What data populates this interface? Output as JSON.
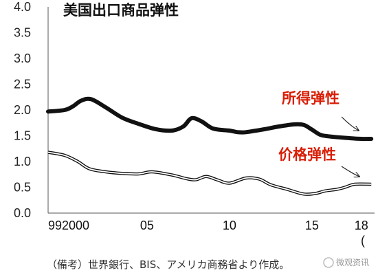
{
  "chart_data": {
    "type": "line",
    "title": "美国出口商品弹性",
    "ylim": [
      0,
      4.0
    ],
    "xlim": [
      1999,
      2018.8
    ],
    "yticks": [
      "4.0",
      "3.5",
      "3.0",
      "2.5",
      "2.0",
      "1.5",
      "1.0",
      "0.5",
      "0.0"
    ],
    "xticks": [
      {
        "x": 1999,
        "label": "99"
      },
      {
        "x": 2000,
        "label": "2000"
      },
      {
        "x": 2005,
        "label": "05"
      },
      {
        "x": 2010,
        "label": "10"
      },
      {
        "x": 2015,
        "label": "15"
      },
      {
        "x": 2018,
        "label": "18"
      }
    ],
    "grid": false,
    "series": [
      {
        "name": "所得弹性",
        "style": "thick-black",
        "color": "#111111",
        "x": [
          1999.0,
          2000.0,
          2000.5,
          2001.0,
          2001.6,
          2002.5,
          2003.5,
          2004.5,
          2005.5,
          2006.5,
          2007.2,
          2007.7,
          2008.3,
          2009.0,
          2010.0,
          2010.5,
          2011.0,
          2012.0,
          2013.0,
          2013.9,
          2014.5,
          2015.0,
          2015.5,
          2016.0,
          2017.0,
          2018.0,
          2018.6
        ],
        "y": [
          1.97,
          2.0,
          2.07,
          2.18,
          2.21,
          2.05,
          1.85,
          1.73,
          1.63,
          1.6,
          1.68,
          1.84,
          1.78,
          1.64,
          1.6,
          1.57,
          1.57,
          1.62,
          1.68,
          1.72,
          1.71,
          1.62,
          1.52,
          1.49,
          1.46,
          1.44,
          1.44
        ]
      },
      {
        "name": "价格弹性",
        "style": "double-line",
        "color": "#111111",
        "x": [
          1999.0,
          2000.0,
          2000.8,
          2001.5,
          2002.5,
          2003.5,
          2004.5,
          2005.3,
          2006.5,
          2007.5,
          2008.0,
          2008.6,
          2009.3,
          2010.0,
          2011.0,
          2011.8,
          2012.5,
          2013.5,
          2014.5,
          2015.2,
          2015.8,
          2016.5,
          2017.0,
          2017.6,
          2018.6
        ],
        "y": [
          1.18,
          1.12,
          1.0,
          0.86,
          0.8,
          0.77,
          0.76,
          0.8,
          0.74,
          0.66,
          0.65,
          0.71,
          0.64,
          0.58,
          0.68,
          0.66,
          0.55,
          0.46,
          0.37,
          0.38,
          0.43,
          0.46,
          0.5,
          0.56,
          0.56
        ]
      }
    ],
    "annotations": [
      {
        "text": "所得弹性",
        "series": "所得弹性"
      },
      {
        "text": "价格弹性",
        "series": "价格弹性"
      }
    ]
  },
  "source_note": "（備考）世界銀行、BIS、アメリカ商務省より作成。",
  "stray_mark": "(",
  "watermark": "微观资讯"
}
